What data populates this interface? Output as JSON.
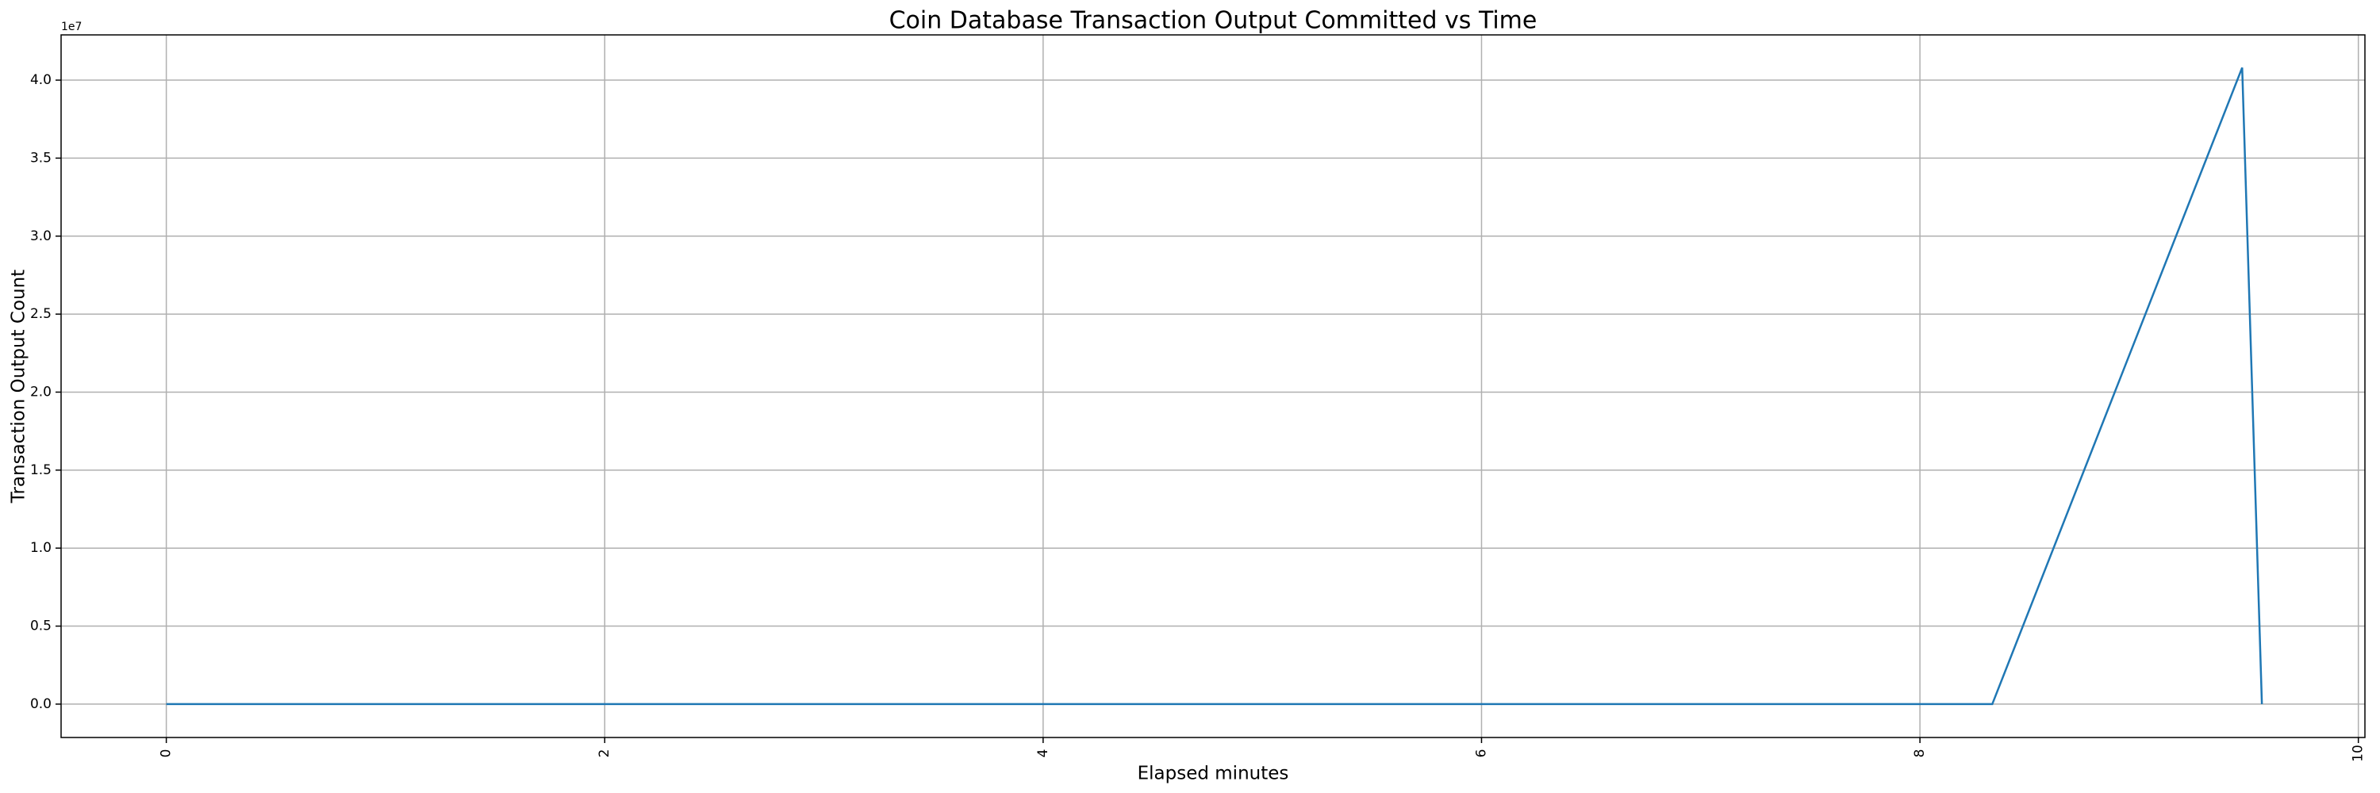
{
  "chart_data": {
    "type": "line",
    "title": "Coin Database Transaction Output Committed vs Time",
    "x_label": "Elapsed minutes",
    "y_label": "Transaction Output Count",
    "y_offset_label": "1e7",
    "x": [
      0,
      8.33,
      9.47,
      9.56
    ],
    "series": [
      {
        "name": "Transaction Output Count",
        "color": "#1f77b4",
        "values": [
          0,
          0,
          40800000,
          0
        ]
      }
    ],
    "xlim": [
      -0.48,
      10.03
    ],
    "ylim": [
      -2140000,
      42900000
    ],
    "xticks": [
      0,
      2,
      4,
      6,
      8,
      10
    ],
    "yticks": [
      {
        "value": 0,
        "label": "0.0"
      },
      {
        "value": 5000000,
        "label": "0.5"
      },
      {
        "value": 10000000,
        "label": "1.0"
      },
      {
        "value": 15000000,
        "label": "1.5"
      },
      {
        "value": 20000000,
        "label": "2.0"
      },
      {
        "value": 25000000,
        "label": "2.5"
      },
      {
        "value": 30000000,
        "label": "3.0"
      },
      {
        "value": 35000000,
        "label": "3.5"
      },
      {
        "value": 40000000,
        "label": "4.0"
      }
    ],
    "grid": true
  }
}
